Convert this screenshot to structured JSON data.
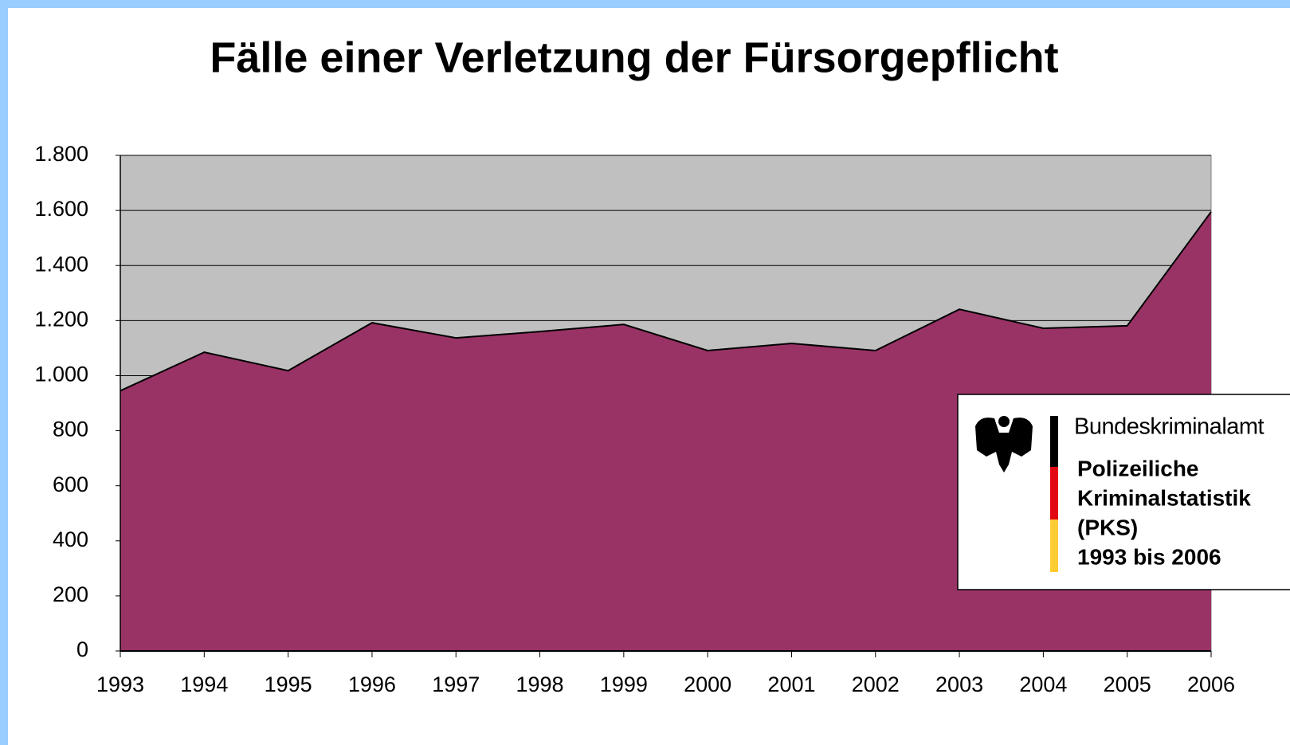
{
  "chart_data": {
    "type": "area",
    "title": "Fälle einer Verletzung der Fürsorgepflicht",
    "categories": [
      "1993",
      "1994",
      "1995",
      "1996",
      "1997",
      "1998",
      "1999",
      "2000",
      "2001",
      "2002",
      "2003",
      "2004",
      "2005",
      "2006"
    ],
    "values": [
      945,
      1085,
      1018,
      1192,
      1137,
      1160,
      1186,
      1091,
      1117,
      1091,
      1241,
      1172,
      1181,
      1595
    ],
    "color": "#993366",
    "ylim": [
      0,
      1800
    ],
    "yticks": [
      0,
      200,
      400,
      600,
      800,
      {
        "value": 1000,
        "label": "1.000"
      },
      {
        "value": 1200,
        "label": "1.200"
      },
      {
        "value": 1400,
        "label": "1.400"
      },
      {
        "value": 1600,
        "label": "1.600"
      },
      {
        "value": 1800,
        "label": "1.800"
      }
    ],
    "grid": true,
    "plot_background": "#c0c0c0",
    "source_box": {
      "agency": "Bundeskriminalamt",
      "lines": [
        "Polizeiliche",
        "Kriminalstatistik",
        "(PKS)",
        "1993 bis 2006"
      ]
    }
  }
}
